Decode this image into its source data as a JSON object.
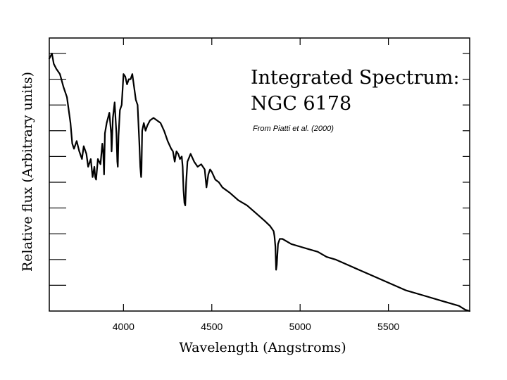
{
  "chart_data": {
    "type": "line",
    "title": "Integrated Spectrum:",
    "subtitle": "NGC 6178",
    "annotation": "From Piatti et al. (2000)",
    "xlabel": "Wavelength (Angstroms)",
    "ylabel": "Relative flux (Arbitrary units)",
    "xlim": [
      3580,
      5960
    ],
    "ylim": [
      0,
      10.6
    ],
    "x_ticks": [
      4000,
      4500,
      5000,
      5500
    ],
    "x_tick_labels": [
      "4000",
      "4500",
      "5000",
      "5500"
    ],
    "y_ticks": [
      1,
      2,
      3,
      4,
      5,
      6,
      7,
      8,
      9,
      10
    ],
    "grid": false,
    "legend": "none",
    "line_color": "#000000",
    "series": [
      {
        "x": [
          3580,
          3595,
          3605,
          3620,
          3640,
          3660,
          3680,
          3700,
          3710,
          3720,
          3735,
          3750,
          3765,
          3775,
          3790,
          3800,
          3815,
          3825,
          3835,
          3840,
          3845,
          3855,
          3870,
          3880,
          3885,
          3890,
          3895,
          3905,
          3920,
          3930,
          3933,
          3940,
          3950,
          3960,
          3965,
          3968,
          3972,
          3980,
          3990,
          4000,
          4010,
          4020,
          4030,
          4040,
          4050,
          4060,
          4070,
          4080,
          4090,
          4095,
          4100,
          4102,
          4106,
          4115,
          4125,
          4135,
          4150,
          4170,
          4190,
          4210,
          4230,
          4250,
          4270,
          4280,
          4290,
          4300,
          4310,
          4320,
          4330,
          4335,
          4340,
          4345,
          4350,
          4355,
          4362,
          4380,
          4400,
          4420,
          4440,
          4460,
          4470,
          4480,
          4490,
          4500,
          4520,
          4540,
          4560,
          4600,
          4650,
          4700,
          4750,
          4800,
          4830,
          4850,
          4855,
          4860,
          4864,
          4868,
          4875,
          4885,
          4900,
          4950,
          5000,
          5050,
          5100,
          5150,
          5200,
          5300,
          5400,
          5500,
          5600,
          5700,
          5800,
          5900,
          5935,
          5960
        ],
        "y": [
          9.8,
          10.0,
          9.6,
          9.4,
          9.2,
          8.7,
          8.3,
          7.3,
          6.5,
          6.3,
          6.6,
          6.2,
          5.9,
          6.4,
          6.1,
          5.6,
          5.9,
          5.2,
          5.6,
          5.2,
          5.1,
          5.9,
          5.7,
          6.5,
          6.2,
          5.3,
          6.9,
          7.3,
          7.7,
          6.9,
          6.2,
          7.5,
          8.1,
          6.9,
          5.8,
          5.6,
          6.8,
          7.8,
          8.0,
          9.2,
          9.1,
          8.8,
          9.0,
          9.0,
          9.2,
          8.7,
          8.2,
          8.0,
          6.5,
          5.6,
          5.2,
          5.4,
          7.0,
          7.3,
          7.0,
          7.2,
          7.4,
          7.5,
          7.4,
          7.3,
          7.0,
          6.6,
          6.3,
          6.2,
          5.8,
          6.2,
          6.1,
          5.9,
          6.0,
          5.6,
          4.7,
          4.2,
          4.1,
          5.0,
          5.8,
          6.1,
          5.8,
          5.6,
          5.7,
          5.5,
          4.8,
          5.3,
          5.5,
          5.4,
          5.1,
          5.0,
          4.8,
          4.6,
          4.3,
          4.1,
          3.8,
          3.5,
          3.3,
          3.1,
          2.9,
          2.5,
          1.6,
          1.8,
          2.6,
          2.8,
          2.8,
          2.6,
          2.5,
          2.4,
          2.3,
          2.1,
          2.0,
          1.7,
          1.4,
          1.1,
          0.8,
          0.6,
          0.4,
          0.2,
          0.05,
          0.0
        ]
      }
    ]
  }
}
